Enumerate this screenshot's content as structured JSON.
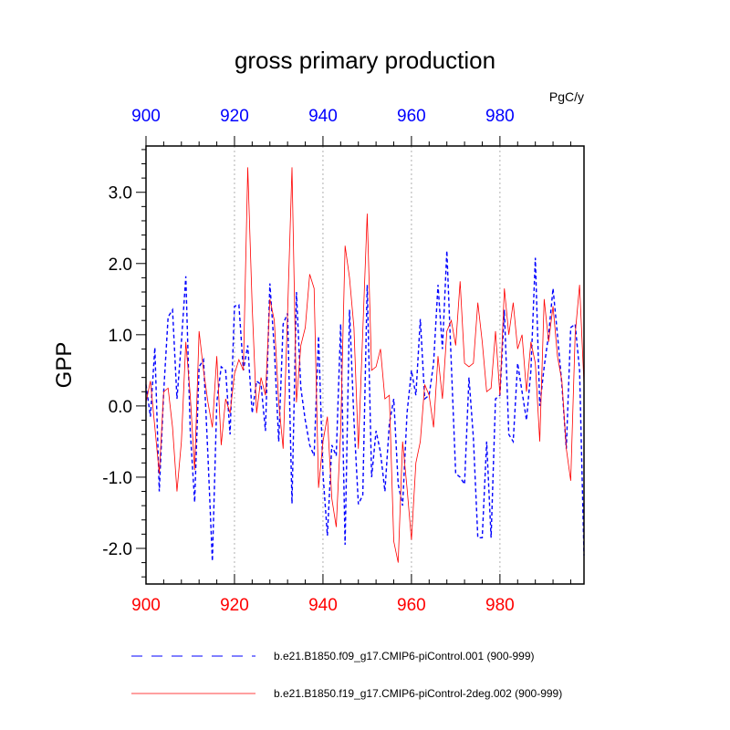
{
  "chart_data": {
    "type": "line",
    "title": "gross primary production",
    "ylabel": "GPP",
    "units": "PgC/y",
    "xlim": [
      900,
      999
    ],
    "ylim": [
      -2.5,
      3.65
    ],
    "x_ticks": [
      900,
      920,
      940,
      960,
      980
    ],
    "y_ticks": [
      3.0,
      2.0,
      1.0,
      0.0,
      -1.0,
      -2.0
    ],
    "x_tick_labels": [
      "900",
      "920",
      "940",
      "960",
      "980"
    ],
    "y_tick_labels": [
      "3.0",
      "2.0",
      "1.0",
      "0.0",
      "-1.0",
      "-2.0"
    ],
    "vertical_gridlines_at": [
      920,
      940,
      960,
      980
    ],
    "colors": {
      "top_axis_labels": "#0000ff",
      "bottom_axis_labels": "#ff0000"
    },
    "series": [
      {
        "name": "b.e21.B1850.f09_g17.CMIP6-piControl.001 (900-999)",
        "color": "#0000ff",
        "style": "dashed",
        "x_start": 900,
        "values": [
          0.3,
          -0.15,
          0.82,
          -1.2,
          0.2,
          1.25,
          1.35,
          0.1,
          0.9,
          1.82,
          -0.35,
          -1.35,
          0.55,
          0.65,
          -0.7,
          -2.18,
          0.05,
          0.55,
          0.5,
          -0.4,
          1.4,
          1.42,
          0.5,
          0.85,
          -0.1,
          0.35,
          0.3,
          -0.35,
          1.72,
          0.8,
          -0.5,
          1.15,
          1.3,
          -1.37,
          1.6,
          0.25,
          -0.2,
          -0.55,
          -0.7,
          0.98,
          -0.95,
          -1.82,
          -0.55,
          -0.7,
          1.15,
          -1.95,
          1.35,
          -0.2,
          -1.38,
          -1.25,
          1.7,
          -1.0,
          -0.35,
          -0.65,
          -1.2,
          -0.25,
          0.1,
          -1.1,
          -1.4,
          -0.1,
          0.5,
          0.15,
          1.22,
          0.1,
          0.15,
          0.6,
          1.7,
          0.8,
          2.18,
          0.6,
          -0.95,
          -1.0,
          -1.1,
          0.4,
          -0.45,
          -1.85,
          -1.85,
          -0.5,
          -1.85,
          0.1,
          0.15,
          1.35,
          -0.4,
          -0.5,
          0.6,
          0.2,
          -0.2,
          0.5,
          2.08,
          0.0,
          0.55,
          1.0,
          1.65,
          1.0,
          0.3,
          -0.6,
          1.1,
          1.15,
          0.5,
          -2.1
        ]
      },
      {
        "name": "b.e21.B1850.f19_g17.CMIP6-piControl-2deg.002 (900-999)",
        "color": "#ff0000",
        "style": "solid",
        "x_start": 900,
        "values": [
          0.05,
          0.35,
          -0.3,
          -0.95,
          0.2,
          0.25,
          -0.3,
          -1.2,
          -0.5,
          0.9,
          0.15,
          -0.9,
          1.05,
          0.5,
          0.05,
          -0.3,
          0.7,
          -0.55,
          0.1,
          -0.1,
          0.45,
          0.65,
          0.5,
          3.35,
          1.4,
          -0.1,
          0.4,
          0.15,
          1.5,
          1.2,
          0.05,
          -0.6,
          1.3,
          3.35,
          0.05,
          0.85,
          1.1,
          1.85,
          1.65,
          -1.15,
          -0.5,
          -0.15,
          -1.3,
          -1.7,
          -0.35,
          2.25,
          1.8,
          1.1,
          -0.6,
          1.05,
          2.7,
          0.5,
          0.55,
          0.8,
          0.1,
          0.15,
          -1.9,
          -2.2,
          -0.5,
          -1.15,
          -1.88,
          -0.8,
          -0.5,
          0.3,
          0.15,
          -0.3,
          0.7,
          0.1,
          1.05,
          1.2,
          0.85,
          1.75,
          0.6,
          0.55,
          0.6,
          1.45,
          0.9,
          0.2,
          0.25,
          1.05,
          0.15,
          1.65,
          1.0,
          1.45,
          0.8,
          1.0,
          0.2,
          0.9,
          0.6,
          -0.5,
          1.5,
          0.9,
          1.4,
          0.7,
          0.35,
          -0.6,
          -1.05,
          1.0,
          1.7,
          0.3
        ]
      }
    ]
  }
}
